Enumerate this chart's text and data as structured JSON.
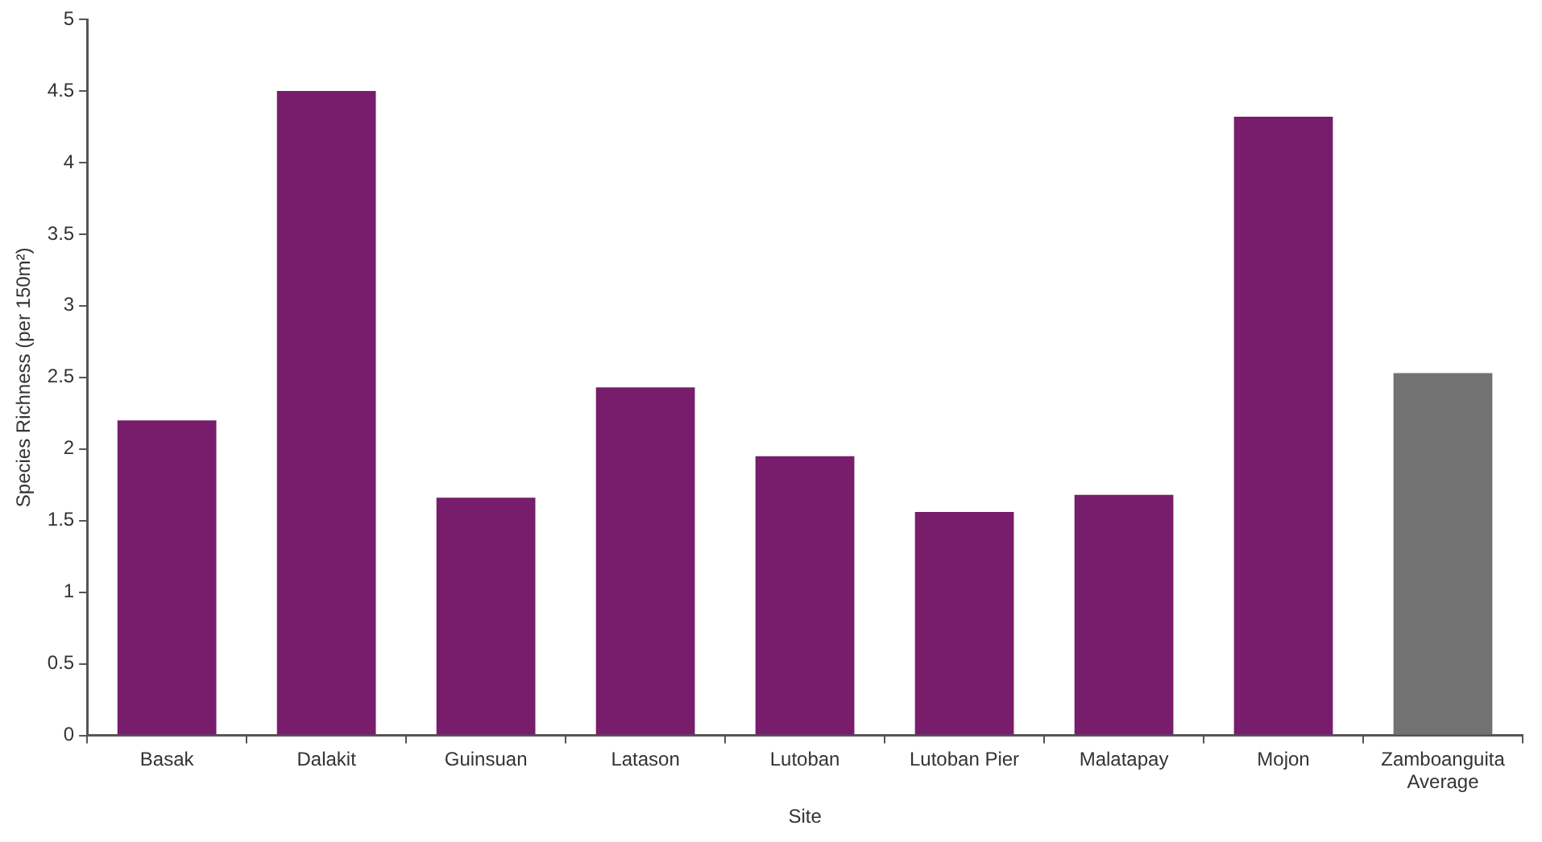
{
  "chart_data": {
    "type": "bar",
    "xlabel": "Site",
    "ylabel": "Species Richness (per 150m²)",
    "categories": [
      "Basak",
      "Dalakit",
      "Guinsuan",
      "Latason",
      "Lutoban",
      "Lutoban Pier",
      "Malatapay",
      "Mojon",
      "Zamboanguita Average"
    ],
    "values": [
      2.2,
      4.5,
      1.66,
      2.43,
      1.95,
      1.56,
      1.68,
      4.32,
      2.53
    ],
    "colors": [
      "#771d6b",
      "#771d6b",
      "#771d6b",
      "#771d6b",
      "#771d6b",
      "#771d6b",
      "#771d6b",
      "#771d6b",
      "#727272"
    ],
    "ylim": [
      0,
      5
    ],
    "yticks": [
      0,
      0.5,
      1,
      1.5,
      2,
      2.5,
      3,
      3.5,
      4,
      4.5,
      5
    ],
    "grid": false,
    "legend": false
  }
}
